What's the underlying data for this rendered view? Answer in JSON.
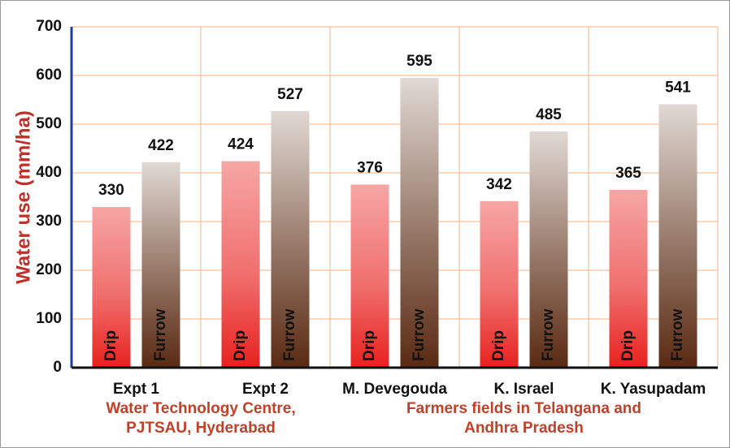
{
  "chart_data": {
    "type": "bar",
    "ylabel": "Water use (mm/ha)",
    "categories": [
      "Expt 1",
      "Expt 2",
      "M. Devegouda",
      "K. Israel",
      "K. Yasupadam"
    ],
    "series": [
      {
        "name": "Drip",
        "color": "#e8211e",
        "values": [
          330,
          424,
          376,
          342,
          365
        ]
      },
      {
        "name": "Furrow",
        "color": "#5a2a12",
        "values": [
          422,
          527,
          595,
          485,
          541
        ]
      }
    ],
    "ylim": [
      0,
      700
    ],
    "yticks": [
      0,
      100,
      200,
      300,
      400,
      500,
      600,
      700
    ],
    "grid": true,
    "annotations": [
      {
        "text": [
          "Water Technology Centre,",
          "PJTSAU, Hyderabad"
        ]
      },
      {
        "text": [
          "Farmers fields in Telangana and",
          "Andhra Pradesh"
        ]
      }
    ]
  }
}
